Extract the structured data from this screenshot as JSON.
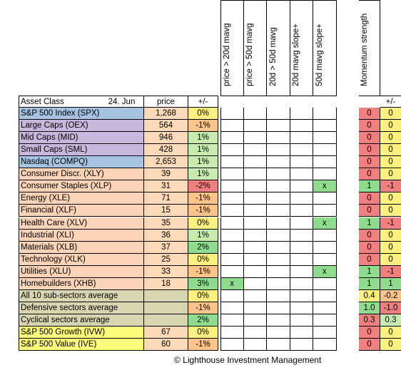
{
  "header": {
    "asset_class": "Asset Class",
    "date": "24. Jun",
    "price": "price",
    "change": "+/-",
    "signals": [
      "price > 20d mavg",
      "price > 50d mavg",
      "20d > 50d mavg",
      "20d mavg slope+",
      "50d mavg slope+"
    ],
    "momentum": "Momentum strength",
    "mom_change": "+/-"
  },
  "colors": {
    "index_blue": "#a6c3e3",
    "index_purple": "#c8b8dd",
    "sector_peach": "#fbd4b8",
    "avg_olive": "#d8d6b0",
    "style_yellow": "#fcfc7c",
    "green": "#8fdc8f",
    "yellow": "#fcf080",
    "red": "#f07f7f",
    "orange": "#fcc48a",
    "light_green": "#c8ecb0"
  },
  "rows": [
    {
      "name": "S&P 500 Index (SPX)",
      "price": "1,268",
      "chg": "0%",
      "chgc": "yellow",
      "bg": "index_blue",
      "sig": [
        "",
        "",
        "",
        "",
        ""
      ],
      "mom": "0",
      "momc": "red",
      "mchg": "0",
      "mchgc": "yellow"
    },
    {
      "name": "Large Caps (OEX)",
      "price": "564",
      "chg": "-1%",
      "chgc": "orange",
      "bg": "index_purple",
      "sig": [
        "",
        "",
        "",
        "",
        ""
      ],
      "mom": "0",
      "momc": "red",
      "mchg": "0",
      "mchgc": "yellow"
    },
    {
      "name": "Mid Caps (MID)",
      "price": "946",
      "chg": "1%",
      "chgc": "light_green",
      "bg": "index_purple",
      "sig": [
        "",
        "",
        "",
        "",
        ""
      ],
      "mom": "0",
      "momc": "red",
      "mchg": "0",
      "mchgc": "yellow"
    },
    {
      "name": "Small Caps (SML)",
      "price": "428",
      "chg": "1%",
      "chgc": "light_green",
      "bg": "index_purple",
      "sig": [
        "",
        "",
        "",
        "",
        ""
      ],
      "mom": "0",
      "momc": "red",
      "mchg": "0",
      "mchgc": "yellow"
    },
    {
      "name": "Nasdaq (COMPQ)",
      "price": "2,653",
      "chg": "1%",
      "chgc": "light_green",
      "bg": "index_blue",
      "sig": [
        "",
        "",
        "",
        "",
        ""
      ],
      "mom": "0",
      "momc": "red",
      "mchg": "0",
      "mchgc": "yellow"
    },
    {
      "name": "Consumer Discr. (XLY)",
      "price": "39",
      "chg": "1%",
      "chgc": "light_green",
      "bg": "sector_peach",
      "sig": [
        "",
        "",
        "",
        "",
        ""
      ],
      "mom": "0",
      "momc": "red",
      "mchg": "0",
      "mchgc": "yellow"
    },
    {
      "name": "Consumer Staples (XLP)",
      "price": "31",
      "chg": "-2%",
      "chgc": "red",
      "bg": "sector_peach",
      "sig": [
        "",
        "",
        "",
        "",
        "x"
      ],
      "mom": "1",
      "momc": "green",
      "mchg": "-1",
      "mchgc": "red"
    },
    {
      "name": "Energy (XLE)",
      "price": "71",
      "chg": "-1%",
      "chgc": "orange",
      "bg": "sector_peach",
      "sig": [
        "",
        "",
        "",
        "",
        ""
      ],
      "mom": "0",
      "momc": "red",
      "mchg": "0",
      "mchgc": "yellow"
    },
    {
      "name": "Financial (XLF)",
      "price": "15",
      "chg": "-1%",
      "chgc": "orange",
      "bg": "sector_peach",
      "sig": [
        "",
        "",
        "",
        "",
        ""
      ],
      "mom": "0",
      "momc": "red",
      "mchg": "0",
      "mchgc": "yellow"
    },
    {
      "name": "Health Care (XLV)",
      "price": "35",
      "chg": "0%",
      "chgc": "yellow",
      "bg": "sector_peach",
      "sig": [
        "",
        "",
        "",
        "",
        "x"
      ],
      "mom": "1",
      "momc": "green",
      "mchg": "-1",
      "mchgc": "red"
    },
    {
      "name": "Industrial (XLI)",
      "price": "36",
      "chg": "1%",
      "chgc": "light_green",
      "bg": "sector_peach",
      "sig": [
        "",
        "",
        "",
        "",
        ""
      ],
      "mom": "0",
      "momc": "red",
      "mchg": "0",
      "mchgc": "yellow"
    },
    {
      "name": "Materials (XLB)",
      "price": "37",
      "chg": "2%",
      "chgc": "green",
      "bg": "sector_peach",
      "sig": [
        "",
        "",
        "",
        "",
        ""
      ],
      "mom": "0",
      "momc": "red",
      "mchg": "0",
      "mchgc": "yellow"
    },
    {
      "name": "Technology (XLK)",
      "price": "25",
      "chg": "0%",
      "chgc": "yellow",
      "bg": "sector_peach",
      "sig": [
        "",
        "",
        "",
        "",
        ""
      ],
      "mom": "0",
      "momc": "red",
      "mchg": "0",
      "mchgc": "yellow"
    },
    {
      "name": "Utilities (XLU)",
      "price": "33",
      "chg": "-1%",
      "chgc": "orange",
      "bg": "sector_peach",
      "sig": [
        "",
        "",
        "",
        "",
        "x"
      ],
      "mom": "1",
      "momc": "green",
      "mchg": "-1",
      "mchgc": "red"
    },
    {
      "name": "Homebuilders (XHB)",
      "price": "18",
      "chg": "3%",
      "chgc": "green",
      "bg": "sector_peach",
      "sig": [
        "x",
        "",
        "",
        "",
        ""
      ],
      "mom": "1",
      "momc": "green",
      "mchg": "1",
      "mchgc": "green"
    },
    {
      "name": "All 10 sub-sectors average",
      "price": "",
      "chg": "0%",
      "chgc": "yellow",
      "bg": "avg_olive",
      "sig": [
        "",
        "",
        "",
        "",
        ""
      ],
      "mom": "0.4",
      "momc": "yellow",
      "mchg": "-0.2",
      "mchgc": "orange"
    },
    {
      "name": "Defensive sectors average",
      "price": "",
      "chg": "-1%",
      "chgc": "orange",
      "bg": "avg_olive",
      "sig": [
        "",
        "",
        "",
        "",
        ""
      ],
      "mom": "1.0",
      "momc": "green",
      "mchg": "-1.0",
      "mchgc": "red"
    },
    {
      "name": "Cyclical sectors average",
      "price": "",
      "chg": "2%",
      "chgc": "green",
      "bg": "avg_olive",
      "sig": [
        "",
        "",
        "",
        "",
        ""
      ],
      "mom": "0.3",
      "momc": "red",
      "mchg": "0.3",
      "mchgc": "light_green"
    },
    {
      "name": "S&P 500 Growth (IVW)",
      "price": "67",
      "chg": "0%",
      "chgc": "yellow",
      "bg": "style_yellow",
      "sig": [
        "",
        "",
        "",
        "",
        ""
      ],
      "mom": "0",
      "momc": "red",
      "mchg": "0",
      "mchgc": "yellow"
    },
    {
      "name": "S&P 500 Value (IVE)",
      "price": "60",
      "chg": "-1%",
      "chgc": "orange",
      "bg": "style_yellow",
      "sig": [
        "",
        "",
        "",
        "",
        ""
      ],
      "mom": "0",
      "momc": "red",
      "mchg": "0",
      "mchgc": "yellow"
    }
  ],
  "footer": "© Lighthouse Investment Management"
}
